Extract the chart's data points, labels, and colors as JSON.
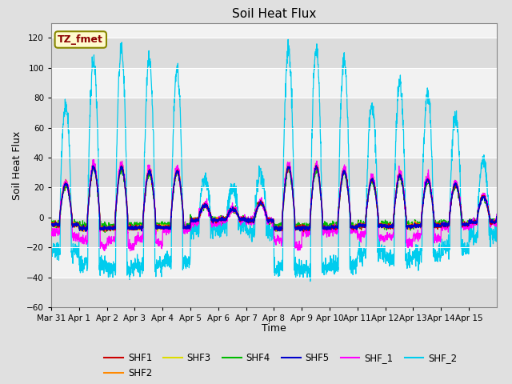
{
  "title": "Soil Heat Flux",
  "ylabel": "Soil Heat Flux",
  "xlabel": "Time",
  "ylim": [
    -60,
    130
  ],
  "yticks": [
    -60,
    -40,
    -20,
    0,
    20,
    40,
    60,
    80,
    100,
    120
  ],
  "annotation": "TZ_fmet",
  "annotation_color": "#8B0000",
  "annotation_bg": "#FFFACD",
  "annotation_border": "#888800",
  "series_colors": {
    "SHF1": "#CC0000",
    "SHF2": "#FF8800",
    "SHF3": "#DDDD00",
    "SHF4": "#00BB00",
    "SHF5": "#0000CC",
    "SHF_1": "#FF00FF",
    "SHF_2": "#00CCEE"
  },
  "bg_color": "#E0E0E0",
  "plot_bg": "#F2F2F2",
  "band_color": "#E0E0E0",
  "n_days": 16,
  "points_per_day": 144,
  "x_tick_labels": [
    "Mar 31",
    "Apr 1",
    "Apr 2",
    "Apr 3",
    "Apr 4",
    "Apr 5",
    "Apr 6",
    "Apr 7",
    "Apr 8",
    "Apr 9",
    "Apr 10",
    "Apr 11",
    "Apr 12",
    "Apr 13",
    "Apr 14",
    "Apr 15"
  ],
  "x_tick_positions": [
    0,
    1,
    2,
    3,
    4,
    5,
    6,
    7,
    8,
    9,
    10,
    11,
    12,
    13,
    14,
    15
  ]
}
